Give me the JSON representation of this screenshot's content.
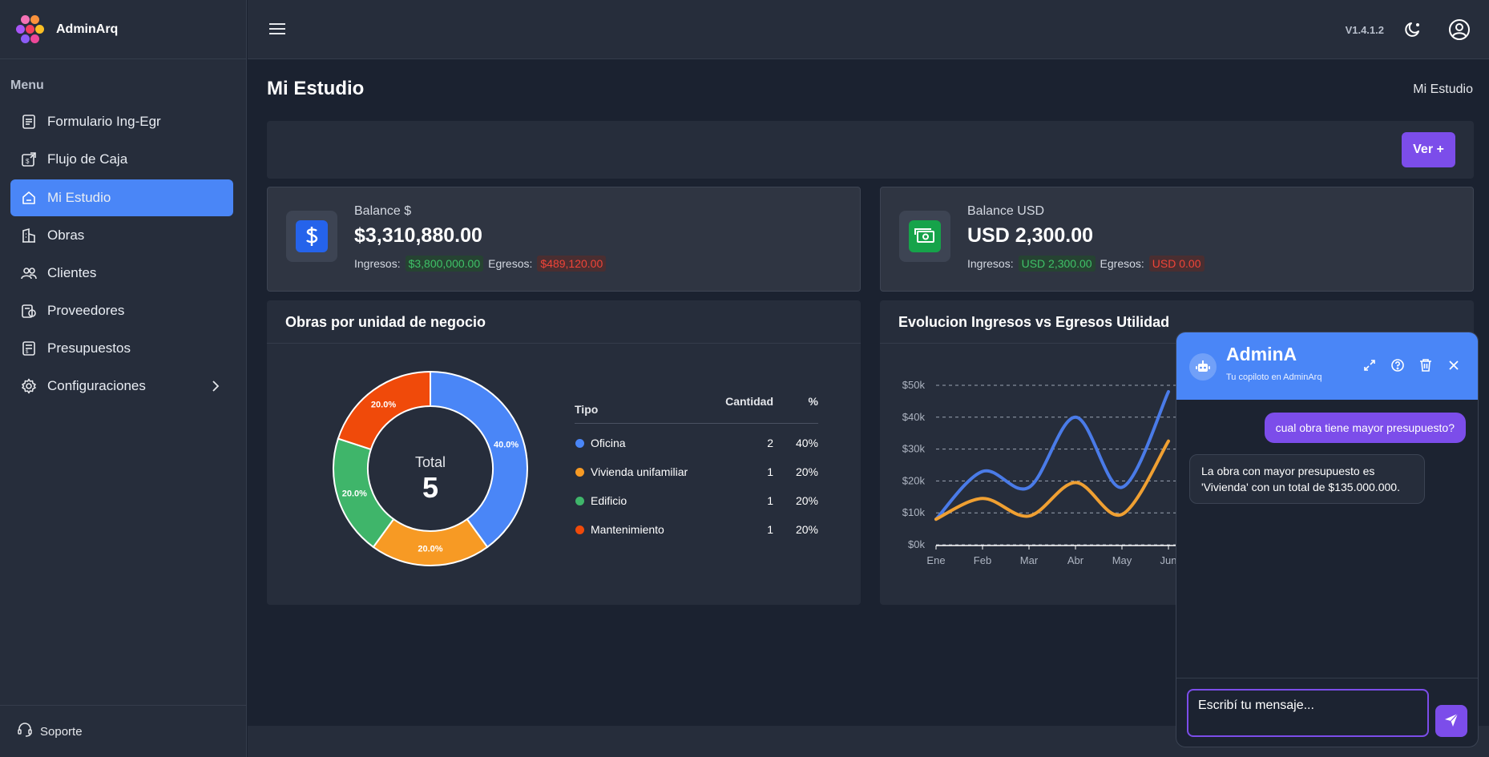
{
  "app": {
    "name": "AdminArq",
    "version": "V1.4.1.2"
  },
  "sidebar": {
    "menu_title": "Menu",
    "items": [
      {
        "label": "Formulario Ing-Egr",
        "icon": "form-icon",
        "active": false
      },
      {
        "label": "Flujo de Caja",
        "icon": "cashflow-icon",
        "active": false
      },
      {
        "label": "Mi Estudio",
        "icon": "home-icon",
        "active": true
      },
      {
        "label": "Obras",
        "icon": "building-icon",
        "active": false
      },
      {
        "label": "Clientes",
        "icon": "users-icon",
        "active": false
      },
      {
        "label": "Proveedores",
        "icon": "supplier-icon",
        "active": false
      },
      {
        "label": "Presupuestos",
        "icon": "budget-icon",
        "active": false
      },
      {
        "label": "Configuraciones",
        "icon": "gear-icon",
        "active": false
      }
    ],
    "support": "Soporte"
  },
  "page": {
    "title": "Mi Estudio",
    "breadcrumb": "Mi Estudio",
    "action_button": "Ver +"
  },
  "balances": [
    {
      "label": "Balance $",
      "value": "$3,310,880.00",
      "ingresos_label": "Ingresos:",
      "ingresos": "$3,800,000.00",
      "egresos_label": "Egresos:",
      "egresos": "$489,120.00"
    },
    {
      "label": "Balance USD",
      "value": "USD 2,300.00",
      "ingresos_label": "Ingresos:",
      "ingresos": "USD 2,300.00",
      "egresos_label": "Egresos:",
      "egresos": "USD 0.00"
    }
  ],
  "donut": {
    "title": "Obras por unidad de negocio",
    "total_label": "Total",
    "total_value": "5",
    "headers": {
      "type": "Tipo",
      "qty": "Cantidad",
      "pct": "%"
    },
    "rows": [
      {
        "type": "Oficina",
        "qty": "2",
        "pct": "40%",
        "color": "#4a86f7"
      },
      {
        "type": "Vivienda unifamiliar",
        "qty": "1",
        "pct": "20%",
        "color": "#f79a24"
      },
      {
        "type": "Edificio",
        "qty": "1",
        "pct": "20%",
        "color": "#3fb56a"
      },
      {
        "type": "Mantenimiento",
        "qty": "1",
        "pct": "20%",
        "color": "#f04a0a"
      }
    ]
  },
  "chart_data": {
    "type": "line",
    "title": "Evolucion Ingresos vs Egresos Utilidad",
    "categories": [
      "Ene",
      "Feb",
      "Mar",
      "Abr",
      "May",
      "Jun"
    ],
    "y_ticks": [
      "$0k",
      "$10k",
      "$20k",
      "$30k",
      "$40k",
      "$50k"
    ],
    "ylim": [
      0,
      50000
    ],
    "grid": true,
    "series": [
      {
        "color": "#4a7be8",
        "values": [
          8000,
          23000,
          18000,
          40000,
          18000,
          48000
        ]
      },
      {
        "color": "#f0a032",
        "values": [
          8000,
          14500,
          9000,
          19500,
          9500,
          32500
        ]
      }
    ]
  },
  "chat": {
    "title": "AdminA",
    "subtitle": "Tu copiloto en AdminArq",
    "user_message": "cual obra tiene mayor presupuesto?",
    "bot_message": "La obra con mayor presupuesto es 'Vivienda' con un total de $135.000.000.",
    "input_placeholder": "Escribí tu mensaje..."
  },
  "colors": {
    "accent": "#4a86f7",
    "purple": "#7c4dea",
    "green": "#3fc168",
    "red": "#f04438"
  }
}
